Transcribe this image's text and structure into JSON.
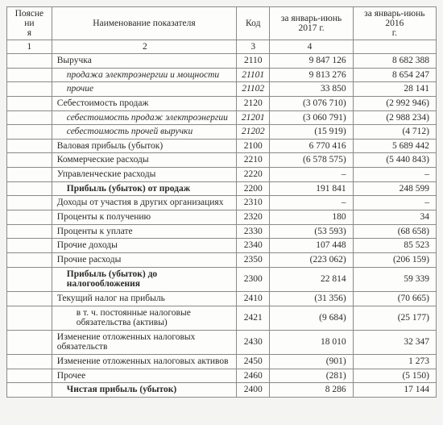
{
  "header": {
    "col1": "Поясне\nни\nя",
    "col2": "Наименование показателя",
    "col3": "Код",
    "col4": "за январь-июнь\n2017 г.",
    "col5": "за январь-июнь 2016\nг."
  },
  "numrow": {
    "c1": "1",
    "c2": "2",
    "c3": "3",
    "c4": "4",
    "c5": ""
  },
  "rows": [
    {
      "name": "Выручка",
      "code": "2110",
      "v1": "9 847 126",
      "v2": "8 682 388"
    },
    {
      "name": "продажа электроэнергии и мощности",
      "code": "21101",
      "v1": "9 813 276",
      "v2": "8 654 247",
      "italic": true,
      "indent": 1
    },
    {
      "name": "прочие",
      "code": "21102",
      "v1": "33 850",
      "v2": "28 141",
      "italic": true,
      "indent": 1
    },
    {
      "name": "Себестоимость продаж",
      "code": "2120",
      "v1": "(3 076 710)",
      "v2": "(2 992 946)"
    },
    {
      "name": "себестоимость продаж электроэнергии",
      "code": "21201",
      "v1": "(3 060 791)",
      "v2": "(2 988 234)",
      "italic": true,
      "indent": 1
    },
    {
      "name": "себестоимость прочей выручки",
      "code": "21202",
      "v1": "(15 919)",
      "v2": "(4 712)",
      "italic": true,
      "indent": 1
    },
    {
      "name": "Валовая прибыль (убыток)",
      "code": "2100",
      "v1": "6 770 416",
      "v2": "5 689 442"
    },
    {
      "name": "Коммерческие расходы",
      "code": "2210",
      "v1": "(6 578 575)",
      "v2": "(5 440 843)"
    },
    {
      "name": "Управленческие расходы",
      "code": "2220",
      "v1": "–",
      "v2": "–"
    },
    {
      "name": "Прибыль (убыток) от продаж",
      "code": "2200",
      "v1": "191 841",
      "v2": "248 599",
      "bold": true,
      "indent": 1
    },
    {
      "name": "Доходы от участия в других организациях",
      "code": "2310",
      "v1": "–",
      "v2": "–"
    },
    {
      "name": "Проценты к получению",
      "code": "2320",
      "v1": "180",
      "v2": "34"
    },
    {
      "name": "Проценты к уплате",
      "code": "2330",
      "v1": "(53 593)",
      "v2": "(68 658)"
    },
    {
      "name": "Прочие доходы",
      "code": "2340",
      "v1": "107 448",
      "v2": "85 523"
    },
    {
      "name": "Прочие расходы",
      "code": "2350",
      "v1": "(223 062)",
      "v2": "(206 159)"
    },
    {
      "name": "Прибыль (убыток) до налогообложения",
      "code": "2300",
      "v1": "22 814",
      "v2": "59 339",
      "bold": true,
      "indent": 1
    },
    {
      "name": "Текущий налог на прибыль",
      "code": "2410",
      "v1": "(31 356)",
      "v2": "(70 665)"
    },
    {
      "name": "в т. ч. постоянные налоговые обязательства (активы)",
      "code": "2421",
      "v1": "(9 684)",
      "v2": "(25 177)",
      "indent": 2
    },
    {
      "name": "Изменение отложенных налоговых обязательств",
      "code": "2430",
      "v1": "18 010",
      "v2": "32 347"
    },
    {
      "name": "Изменение отложенных налоговых активов",
      "code": "2450",
      "v1": "(901)",
      "v2": "1 273"
    },
    {
      "name": "Прочее",
      "code": "2460",
      "v1": "(281)",
      "v2": "(5 150)"
    },
    {
      "name": "Чистая прибыль (убыток)",
      "code": "2400",
      "v1": "8 286",
      "v2": "17 144",
      "bold": true,
      "indent": 1
    }
  ]
}
